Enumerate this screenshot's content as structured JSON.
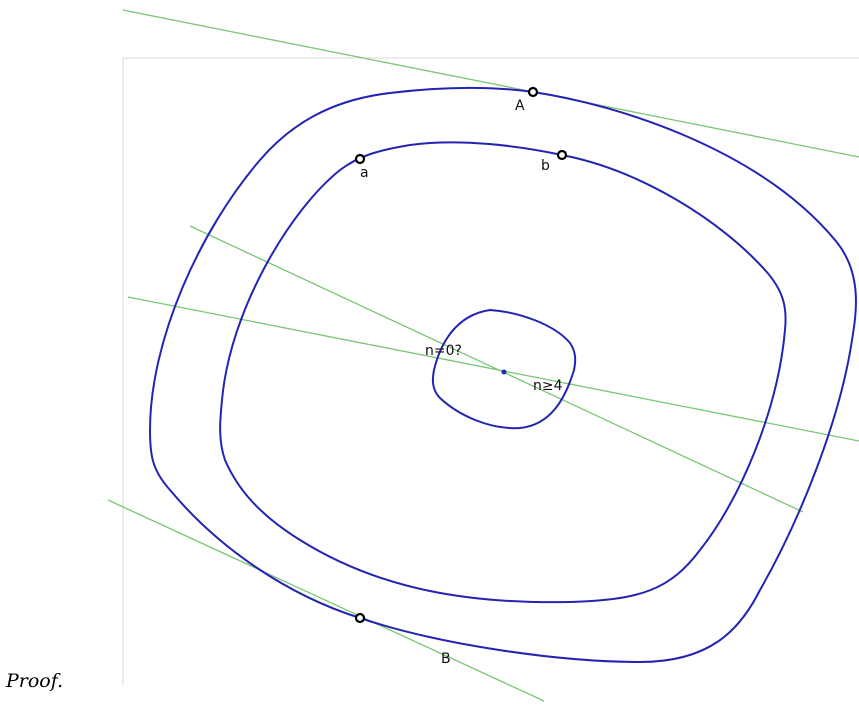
{
  "colors": {
    "curve": "#2424b4",
    "line": "#7ac675",
    "frame": "#d9d9d9",
    "point": "#000000",
    "center": "#2a2ab0"
  },
  "labels": {
    "A": "A",
    "B": "B",
    "a": "a",
    "b": "b",
    "n_eq_0": "n=0?",
    "n_ge_4": "n≥4"
  },
  "caption": "Proof."
}
